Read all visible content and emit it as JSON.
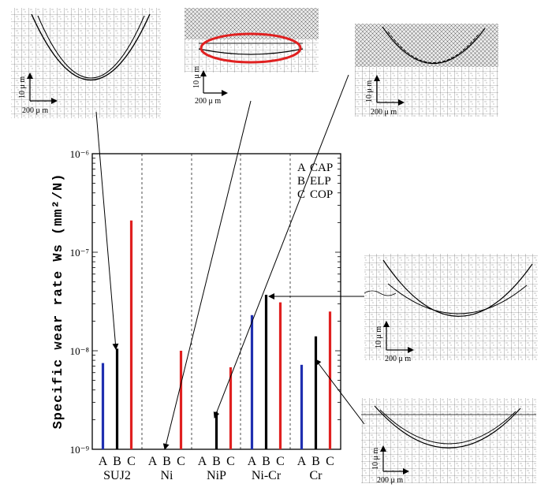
{
  "chart_data": {
    "type": "bar",
    "ylabel": "Specific wear rate Ws (mm²/N)",
    "yscale": "log",
    "ylim": [
      1e-09,
      1e-06
    ],
    "y_ticks": [
      {
        "value": 1e-09,
        "label": "10⁻⁹"
      },
      {
        "value": 1e-08,
        "label": "10⁻⁸"
      },
      {
        "value": 1e-07,
        "label": "10⁻⁷"
      },
      {
        "value": 1e-06,
        "label": "10⁻⁶"
      }
    ],
    "groups": [
      "SUJ2",
      "Ni",
      "NiP",
      "Ni-Cr",
      "Cr"
    ],
    "sub_labels": [
      "A",
      "B",
      "C"
    ],
    "legend": [
      {
        "key": "A",
        "name": "CAP"
      },
      {
        "key": "B",
        "name": "ELP"
      },
      {
        "key": "C",
        "name": "COP"
      }
    ],
    "legend_position": "top-right",
    "series": [
      {
        "key": "A",
        "color": "#1f2fb0",
        "values": [
          7.5e-09,
          null,
          null,
          2.3e-08,
          7.2e-09
        ]
      },
      {
        "key": "B",
        "color": "#000000",
        "values": [
          1.05e-08,
          null,
          2.4e-09,
          3.7e-08,
          1.4e-08
        ]
      },
      {
        "key": "C",
        "color": "#e02020",
        "values": [
          2.1e-07,
          1e-08,
          6.8e-09,
          3.1e-08,
          2.5e-08
        ]
      }
    ]
  },
  "insets": [
    {
      "id": "suj2-profile",
      "scale_v": "10 μ m",
      "scale_h": "200 μ m"
    },
    {
      "id": "ni-profile",
      "scale_v": "10 μ m",
      "scale_h": "200 μ m",
      "highlight": "#e02020"
    },
    {
      "id": "nip-profile",
      "scale_v": "10 μ m",
      "scale_h": "200 μ m"
    },
    {
      "id": "nicr-profile",
      "scale_v": "10 μ m",
      "scale_h": "200 μ m"
    },
    {
      "id": "cr-profile",
      "scale_v": "10 μ m",
      "scale_h": "200 μ m"
    }
  ]
}
